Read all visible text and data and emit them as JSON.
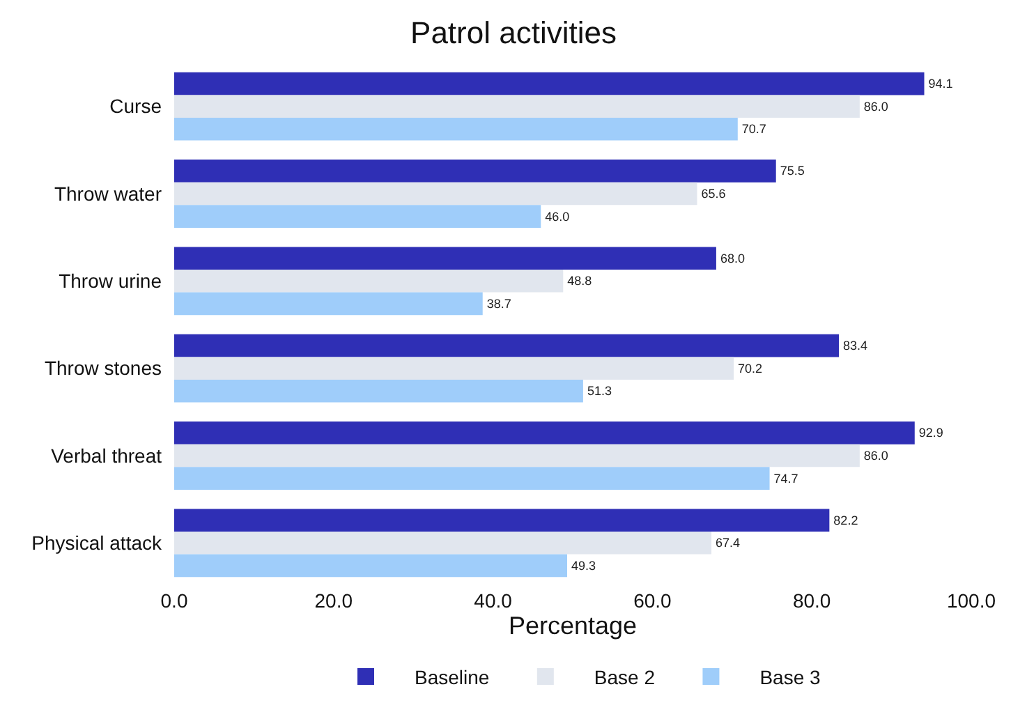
{
  "chart_data": {
    "type": "bar",
    "orientation": "horizontal",
    "title": "Patrol activities",
    "xlabel": "Percentage",
    "categories": [
      "Curse",
      "Throw water",
      "Throw urine",
      "Throw stones",
      "Verbal threat",
      "Physical attack"
    ],
    "series": [
      {
        "name": "Baseline",
        "color": "#2f2fb5",
        "values": [
          94.1,
          75.5,
          68.0,
          83.4,
          92.9,
          82.2
        ]
      },
      {
        "name": "Base 2",
        "color": "#e1e6ee",
        "values": [
          86.0,
          65.6,
          48.8,
          70.2,
          86.0,
          67.4
        ]
      },
      {
        "name": "Base 3",
        "color": "#9fcdfa",
        "values": [
          70.7,
          46.0,
          38.7,
          51.3,
          74.7,
          49.3
        ]
      }
    ],
    "value_labels": [
      [
        "94.1",
        "75.5",
        "68.0",
        "83.4",
        "92.9",
        "82.2"
      ],
      [
        "86.0",
        "65.6",
        "48.8",
        "70.2",
        "86.0",
        "67.4"
      ],
      [
        "70.7",
        "46.0",
        "38.7",
        "51.3",
        "74.7",
        "49.3"
      ]
    ],
    "xlim": [
      0,
      100
    ],
    "xticks": [
      {
        "value": 0,
        "label": "0.0"
      },
      {
        "value": 20,
        "label": "20.0"
      },
      {
        "value": 40,
        "label": "40.0"
      },
      {
        "value": 60,
        "label": "60.0"
      },
      {
        "value": 80,
        "label": "80.0"
      },
      {
        "value": 100,
        "label": "100.0"
      }
    ],
    "grid": false,
    "legend": "bottom"
  }
}
